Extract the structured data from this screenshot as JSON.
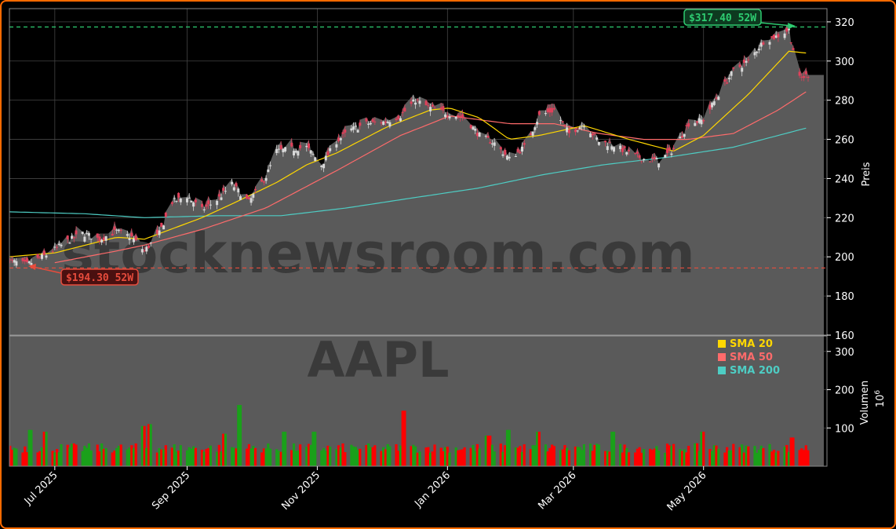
{
  "colors": {
    "frame_border": "#ff6a00",
    "background": "#000000",
    "area_fill": "#5a5a5a",
    "grid": "#444444",
    "up_candle": "#d8d8d8",
    "down_candle": "#e0405a",
    "volume_up": "#1aa01a",
    "volume_down": "#ff0000",
    "sma20": "#ffd700",
    "sma50": "#ff6b6b",
    "sma200": "#4ecdc4",
    "high_line": "#2ecc71",
    "low_line": "#e74c3c"
  },
  "watermark": {
    "site": "stocknewsroom.com",
    "ticker": "AAPL"
  },
  "annotations": {
    "high_label": "$317.40 52W",
    "low_label": "$194.30 52W"
  },
  "legend": [
    {
      "label": "SMA 20",
      "color": "#ffd700"
    },
    {
      "label": "SMA 50",
      "color": "#ff6b6b"
    },
    {
      "label": "SMA 200",
      "color": "#4ecdc4"
    }
  ],
  "chart_data": [
    {
      "type": "candlestick",
      "ylabel": "Preis",
      "ylim": [
        160,
        326
      ],
      "yticks": [
        160,
        180,
        200,
        220,
        240,
        260,
        280,
        300,
        320
      ],
      "x_start": "2025-06-09",
      "x_end": "2026-06-19",
      "x_ticks": [
        {
          "date": "2025-07-01",
          "label": "Jul 2025"
        },
        {
          "date": "2025-09-01",
          "label": "Sep 2025"
        },
        {
          "date": "2025-11-01",
          "label": "Nov 2025"
        },
        {
          "date": "2026-01-01",
          "label": "Jan 2026"
        },
        {
          "date": "2026-03-01",
          "label": "Mar 2026"
        },
        {
          "date": "2026-05-01",
          "label": "May 2026"
        }
      ],
      "high_52w": 317.4,
      "low_52w": 194.3,
      "grid": true,
      "close_anchors": [
        [
          "2025-06-09",
          198
        ],
        [
          "2025-06-18",
          196
        ],
        [
          "2025-06-27",
          201
        ],
        [
          "2025-07-07",
          208
        ],
        [
          "2025-07-14",
          212
        ],
        [
          "2025-07-22",
          209
        ],
        [
          "2025-07-30",
          213
        ],
        [
          "2025-08-06",
          210
        ],
        [
          "2025-08-12",
          203
        ],
        [
          "2025-08-19",
          212
        ],
        [
          "2025-08-25",
          228
        ],
        [
          "2025-09-01",
          231
        ],
        [
          "2025-09-08",
          224
        ],
        [
          "2025-09-15",
          229
        ],
        [
          "2025-09-22",
          237
        ],
        [
          "2025-09-30",
          228
        ],
        [
          "2025-10-08",
          241
        ],
        [
          "2025-10-13",
          254
        ],
        [
          "2025-10-20",
          255
        ],
        [
          "2025-10-27",
          256
        ],
        [
          "2025-11-03",
          247
        ],
        [
          "2025-11-10",
          259
        ],
        [
          "2025-11-17",
          265
        ],
        [
          "2025-11-24",
          268
        ],
        [
          "2025-12-03",
          269
        ],
        [
          "2025-12-10",
          272
        ],
        [
          "2025-12-17",
          280
        ],
        [
          "2025-12-24",
          276
        ],
        [
          "2026-01-02",
          273
        ],
        [
          "2026-01-09",
          271
        ],
        [
          "2026-01-16",
          262
        ],
        [
          "2026-01-23",
          258
        ],
        [
          "2026-01-30",
          250
        ],
        [
          "2026-02-06",
          256
        ],
        [
          "2026-02-13",
          272
        ],
        [
          "2026-02-20",
          275
        ],
        [
          "2026-02-27",
          263
        ],
        [
          "2026-03-06",
          268
        ],
        [
          "2026-03-13",
          259
        ],
        [
          "2026-03-20",
          257
        ],
        [
          "2026-03-27",
          253
        ],
        [
          "2026-04-03",
          250
        ],
        [
          "2026-04-10",
          249
        ],
        [
          "2026-04-17",
          255
        ],
        [
          "2026-04-24",
          268
        ],
        [
          "2026-05-01",
          270
        ],
        [
          "2026-05-08",
          283
        ],
        [
          "2026-05-15",
          295
        ],
        [
          "2026-05-22",
          300
        ],
        [
          "2026-05-29",
          310
        ],
        [
          "2026-06-05",
          313
        ],
        [
          "2026-06-10",
          316
        ],
        [
          "2026-06-15",
          291
        ],
        [
          "2026-06-19",
          293
        ]
      ],
      "sma20_anchors": [
        [
          "2025-06-09",
          200
        ],
        [
          "2025-07-01",
          202
        ],
        [
          "2025-07-30",
          210
        ],
        [
          "2025-08-12",
          209
        ],
        [
          "2025-09-08",
          220
        ],
        [
          "2025-09-22",
          227
        ],
        [
          "2025-10-13",
          238
        ],
        [
          "2025-10-27",
          247
        ],
        [
          "2025-11-10",
          253
        ],
        [
          "2025-12-03",
          266
        ],
        [
          "2025-12-24",
          275
        ],
        [
          "2026-01-02",
          276
        ],
        [
          "2026-01-16",
          271
        ],
        [
          "2026-01-30",
          260
        ],
        [
          "2026-02-13",
          262
        ],
        [
          "2026-03-06",
          267
        ],
        [
          "2026-03-27",
          260
        ],
        [
          "2026-04-17",
          254
        ],
        [
          "2026-05-01",
          262
        ],
        [
          "2026-05-22",
          283
        ],
        [
          "2026-06-10",
          305
        ],
        [
          "2026-06-19",
          304
        ]
      ],
      "sma50_anchors": [
        [
          "2025-07-01",
          197
        ],
        [
          "2025-07-30",
          203
        ],
        [
          "2025-08-12",
          206
        ],
        [
          "2025-09-08",
          214
        ],
        [
          "2025-10-08",
          225
        ],
        [
          "2025-11-10",
          244
        ],
        [
          "2025-12-10",
          262
        ],
        [
          "2025-12-24",
          268
        ],
        [
          "2026-01-02",
          272
        ],
        [
          "2026-01-30",
          268
        ],
        [
          "2026-02-20",
          268
        ],
        [
          "2026-03-13",
          263
        ],
        [
          "2026-04-03",
          260
        ],
        [
          "2026-04-24",
          260
        ],
        [
          "2026-05-15",
          263
        ],
        [
          "2026-06-05",
          275
        ],
        [
          "2026-06-19",
          285
        ]
      ],
      "sma200_anchors": [
        [
          "2025-06-09",
          223
        ],
        [
          "2025-07-15",
          222
        ],
        [
          "2025-08-12",
          220
        ],
        [
          "2025-09-15",
          221
        ],
        [
          "2025-10-15",
          221
        ],
        [
          "2025-11-15",
          225
        ],
        [
          "2025-12-15",
          230
        ],
        [
          "2026-01-15",
          235
        ],
        [
          "2026-02-15",
          242
        ],
        [
          "2026-03-15",
          247
        ],
        [
          "2026-04-15",
          251
        ],
        [
          "2026-05-15",
          256
        ],
        [
          "2026-06-19",
          266
        ]
      ]
    },
    {
      "type": "bar",
      "ylabel": "Volumen",
      "unit": "10^6",
      "yticks": [
        100,
        200,
        300
      ],
      "ylim": [
        0,
        330
      ],
      "typical_volume_range": [
        35,
        60
      ],
      "spikes": [
        [
          "2025-06-20",
          95
        ],
        [
          "2025-06-27",
          90
        ],
        [
          "2025-08-11",
          105
        ],
        [
          "2025-08-15",
          110
        ],
        [
          "2025-09-19",
          85
        ],
        [
          "2025-09-26",
          160
        ],
        [
          "2025-10-17",
          90
        ],
        [
          "2025-10-31",
          90
        ],
        [
          "2025-12-12",
          145
        ],
        [
          "2026-01-20",
          80
        ],
        [
          "2026-01-30",
          95
        ],
        [
          "2026-02-13",
          90
        ],
        [
          "2026-03-20",
          90
        ],
        [
          "2026-05-01",
          90
        ],
        [
          "2026-06-12",
          75
        ]
      ]
    }
  ]
}
